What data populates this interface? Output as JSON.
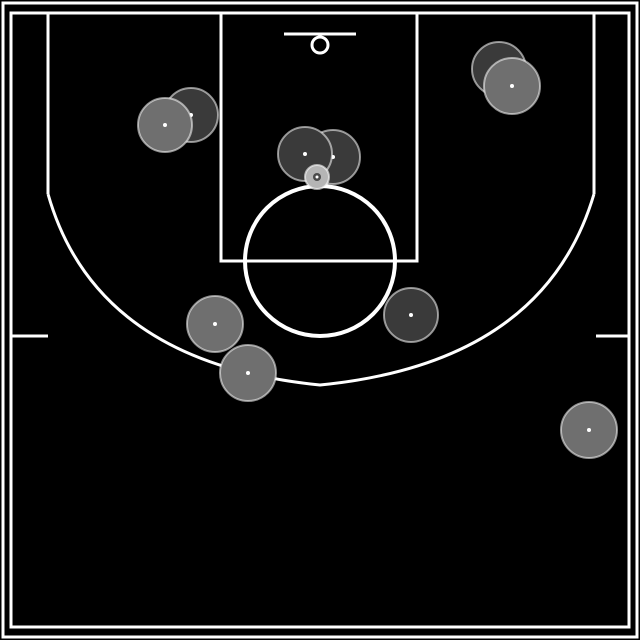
{
  "court": {
    "background": "#000000",
    "line_color": "#ffffff",
    "team_a_color": "#3a3a3a",
    "team_b_color": "#6f6f6f",
    "ball_color": "#b5b5b5"
  },
  "players": [
    {
      "team": "a",
      "label": "team-a-player-1"
    },
    {
      "team": "b",
      "label": "team-b-player-1"
    },
    {
      "team": "a",
      "label": "team-a-player-2"
    },
    {
      "team": "b",
      "label": "team-b-player-2"
    },
    {
      "team": "a",
      "label": "team-a-player-3"
    },
    {
      "team": "b",
      "label": "team-b-player-3"
    },
    {
      "team": "a",
      "label": "team-a-player-4"
    },
    {
      "team": "b",
      "label": "team-b-player-4"
    },
    {
      "team": "a",
      "label": "team-a-player-5"
    },
    {
      "team": "b",
      "label": "team-b-player-5"
    }
  ],
  "ball": {
    "label": "basketball"
  }
}
